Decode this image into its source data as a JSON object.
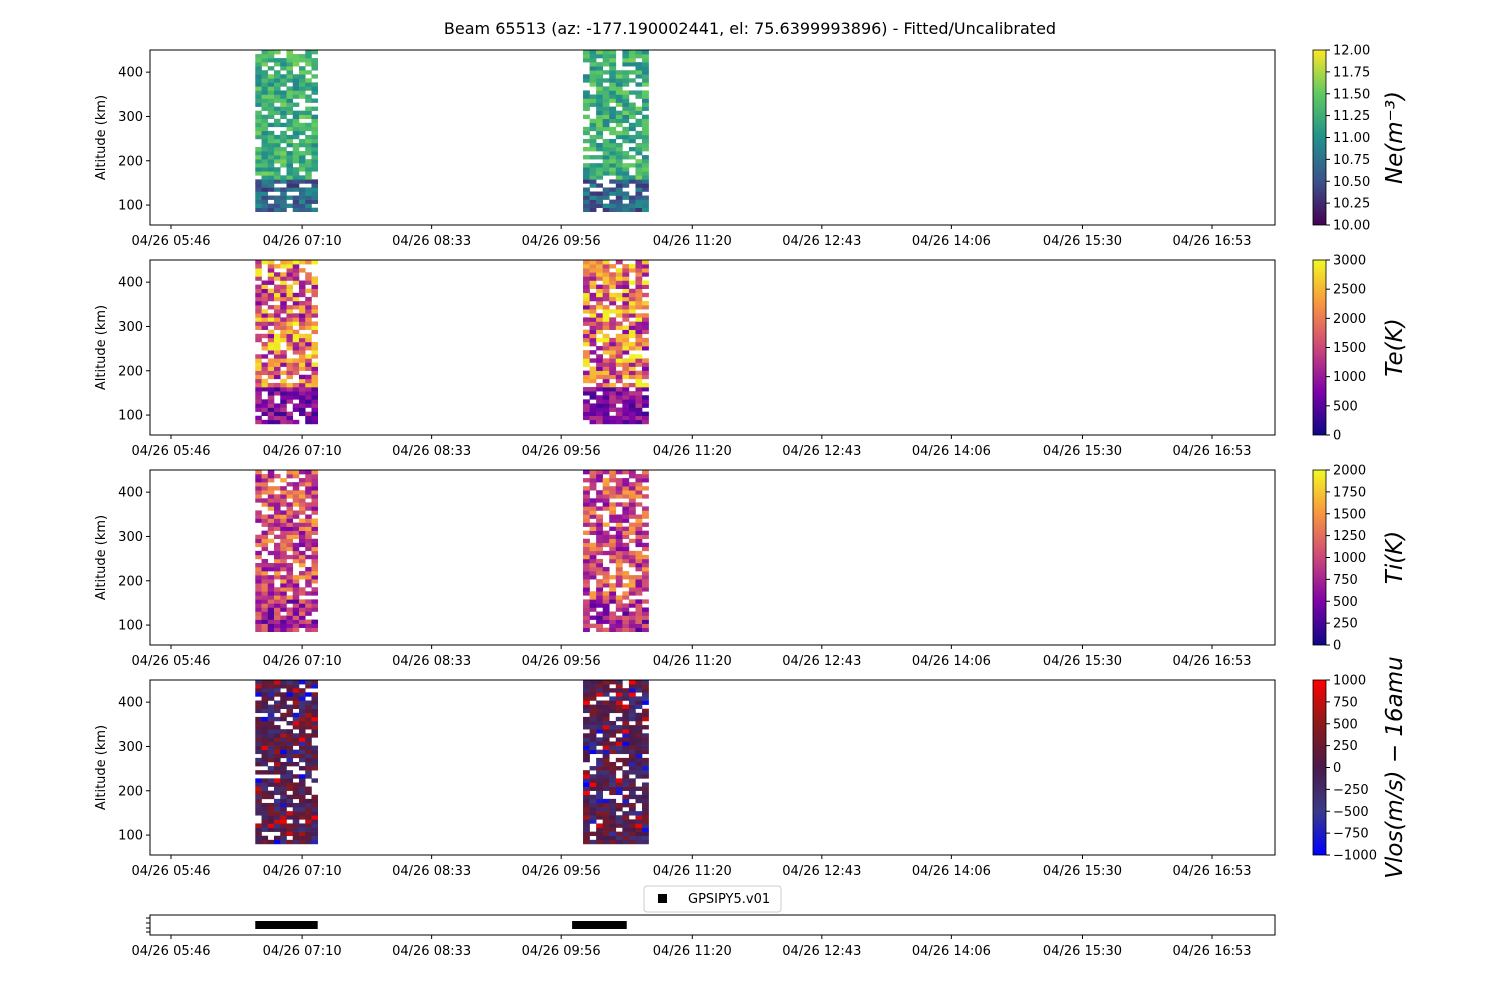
{
  "title": "Beam 65513 (az: -177.190002441, el: 75.6399993896) - Fitted/Uncalibrated",
  "time_ticks": [
    "04/26 05:46",
    "04/26 07:10",
    "04/26 08:33",
    "04/26 09:56",
    "04/26 11:20",
    "04/26 12:43",
    "04/26 14:06",
    "04/26 15:30",
    "04/26 16:53"
  ],
  "legend": {
    "label": "GPSIPY5.v01",
    "placement": "top-center",
    "marker_color": "#000000"
  },
  "chart_data": [
    {
      "type": "heatmap",
      "ylabel": "Altitude (km)",
      "ylim": [
        55,
        450
      ],
      "y_ticks": [
        100,
        200,
        300,
        400
      ],
      "colorbar": {
        "label": "Ne(m⁻³)",
        "range": [
          10.0,
          12.0
        ],
        "ticks": [
          "10.00",
          "10.25",
          "10.50",
          "10.75",
          "11.00",
          "11.25",
          "11.50",
          "11.75",
          "12.00"
        ],
        "colors": [
          "#440154",
          "#3b528b",
          "#21918c",
          "#5ec962",
          "#fde725"
        ]
      },
      "data_blocks": [
        {
          "time_start": "04/26 06:40",
          "time_end": "04/26 07:20",
          "alt_range": [
            85,
            450
          ],
          "typical_value": "10.5–11.6"
        },
        {
          "time_start": "04/26 10:10",
          "time_end": "04/26 10:52",
          "alt_range": [
            85,
            450
          ],
          "typical_value": "10.5–11.8"
        }
      ]
    },
    {
      "type": "heatmap",
      "ylabel": "Altitude (km)",
      "ylim": [
        55,
        450
      ],
      "y_ticks": [
        100,
        200,
        300,
        400
      ],
      "colorbar": {
        "label": "Te(K)",
        "range": [
          0,
          3000
        ],
        "ticks": [
          "0",
          "500",
          "1000",
          "1500",
          "2000",
          "2500",
          "3000"
        ],
        "colors": [
          "#0d0887",
          "#7e03a8",
          "#cc4778",
          "#f89540",
          "#f0f921"
        ]
      },
      "data_blocks": [
        {
          "time_start": "04/26 06:40",
          "time_end": "04/26 07:20",
          "alt_range": [
            80,
            450
          ],
          "typical_value": "500–3000"
        },
        {
          "time_start": "04/26 10:10",
          "time_end": "04/26 10:52",
          "alt_range": [
            80,
            450
          ],
          "typical_value": "500–3000"
        }
      ]
    },
    {
      "type": "heatmap",
      "ylabel": "Altitude (km)",
      "ylim": [
        55,
        450
      ],
      "y_ticks": [
        100,
        200,
        300,
        400
      ],
      "colorbar": {
        "label": "Ti(K)",
        "range": [
          0,
          2000
        ],
        "ticks": [
          "0",
          "250",
          "500",
          "750",
          "1000",
          "1250",
          "1500",
          "1750",
          "2000"
        ],
        "colors": [
          "#0d0887",
          "#7e03a8",
          "#cc4778",
          "#f89540",
          "#f0f921"
        ]
      },
      "data_blocks": [
        {
          "time_start": "04/26 06:40",
          "time_end": "04/26 07:20",
          "alt_range": [
            85,
            450
          ],
          "typical_value": "400–1600"
        },
        {
          "time_start": "04/26 10:10",
          "time_end": "04/26 10:52",
          "alt_range": [
            85,
            450
          ],
          "typical_value": "400–1600"
        }
      ]
    },
    {
      "type": "heatmap",
      "ylabel": "Altitude (km)",
      "ylim": [
        55,
        450
      ],
      "y_ticks": [
        100,
        200,
        300,
        400
      ],
      "colorbar": {
        "label": "Vlos(m/s) − 16amu",
        "range": [
          -1000,
          1000
        ],
        "ticks": [
          "−1000",
          "−750",
          "−500",
          "−250",
          "0",
          "250",
          "500",
          "750",
          "1000"
        ],
        "colors": [
          "#0000ff",
          "#3a3a8a",
          "#4a1a4a",
          "#8b1a1a",
          "#ff0000"
        ]
      },
      "data_blocks": [
        {
          "time_start": "04/26 06:40",
          "time_end": "04/26 07:20",
          "alt_range": [
            80,
            450
          ],
          "typical_value": "−600–600"
        },
        {
          "time_start": "04/26 10:10",
          "time_end": "04/26 10:52",
          "alt_range": [
            80,
            450
          ],
          "typical_value": "−600–600"
        }
      ]
    },
    {
      "type": "timeline",
      "series": [
        {
          "name": "GPSIPY5.v01",
          "intervals": [
            [
              "04/26 06:40",
              "04/26 07:20"
            ],
            [
              "04/26 10:03",
              "04/26 10:38"
            ]
          ]
        }
      ]
    }
  ]
}
